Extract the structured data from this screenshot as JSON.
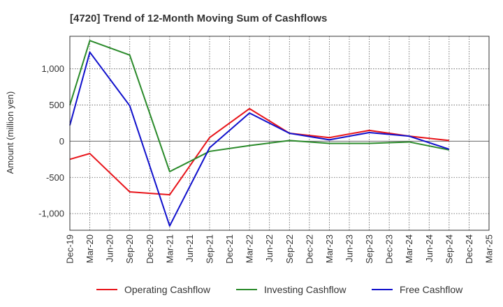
{
  "chart_data": {
    "type": "line",
    "title": "[4720]  Trend of 12-Month Moving Sum of Cashflows",
    "xlabel": "",
    "ylabel": "Amount (million yen)",
    "ylim": [
      -1230,
      1450
    ],
    "yticks": [
      -1000,
      -500,
      0,
      500,
      1000
    ],
    "ytick_labels": [
      "-1,000",
      "-500",
      "0",
      "500",
      "1,000"
    ],
    "categories": [
      "Dec-19",
      "Mar-20",
      "Jun-20",
      "Sep-20",
      "Dec-20",
      "Mar-21",
      "Jun-21",
      "Sep-21",
      "Dec-21",
      "Mar-22",
      "Jun-22",
      "Sep-22",
      "Dec-22",
      "Mar-23",
      "Jun-23",
      "Sep-23",
      "Dec-23",
      "Mar-24",
      "Jun-24",
      "Sep-24",
      "Dec-24",
      "Mar-25"
    ],
    "grid": true,
    "legend_position": "bottom",
    "series": [
      {
        "name": "Operating Cashflow",
        "color": "#e8141a",
        "values": [
          -250,
          -170,
          null,
          -700,
          null,
          -740,
          null,
          50,
          null,
          450,
          null,
          110,
          null,
          50,
          null,
          150,
          null,
          70,
          null,
          10,
          null,
          null
        ]
      },
      {
        "name": "Investing Cashflow",
        "color": "#2a8a2a",
        "values": [
          500,
          1390,
          null,
          1190,
          null,
          -420,
          null,
          -140,
          null,
          -60,
          null,
          10,
          null,
          -30,
          null,
          -30,
          null,
          -10,
          null,
          -120,
          null,
          null
        ]
      },
      {
        "name": "Free Cashflow",
        "color": "#1010cc",
        "values": [
          220,
          1230,
          null,
          490,
          null,
          -1170,
          null,
          -90,
          null,
          390,
          null,
          110,
          null,
          20,
          null,
          120,
          null,
          70,
          null,
          -110,
          null,
          null
        ]
      }
    ]
  }
}
